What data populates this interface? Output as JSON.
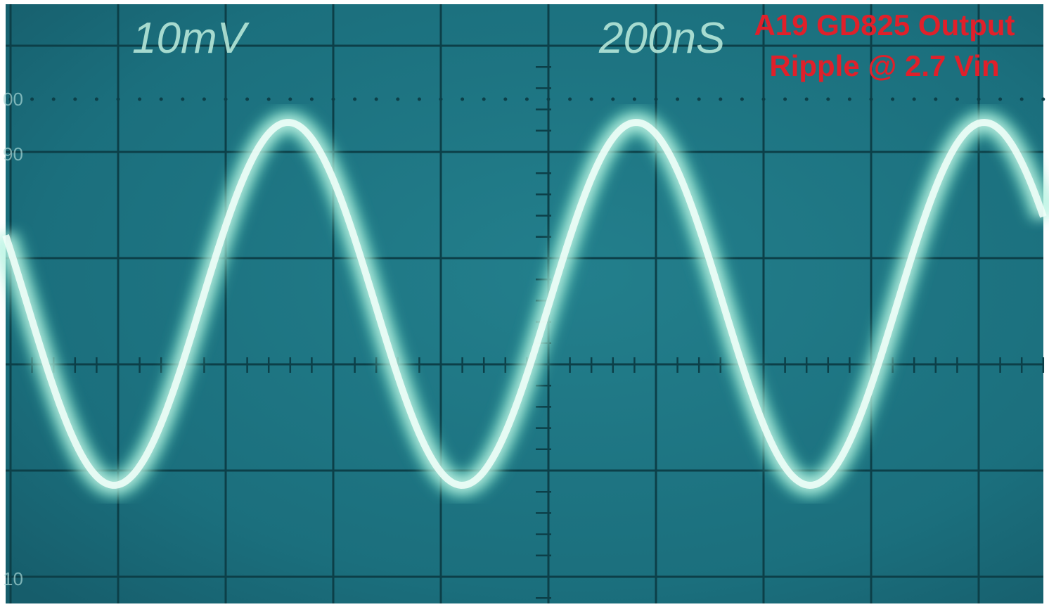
{
  "screen": {
    "volts_per_div": "10mV",
    "time_per_div": "200nS",
    "graticule_labels": [
      "00",
      "90",
      "10"
    ]
  },
  "annotation": {
    "line1": "A19 GD825 Output",
    "line2": "Ripple @ 2.7 Vin"
  }
}
